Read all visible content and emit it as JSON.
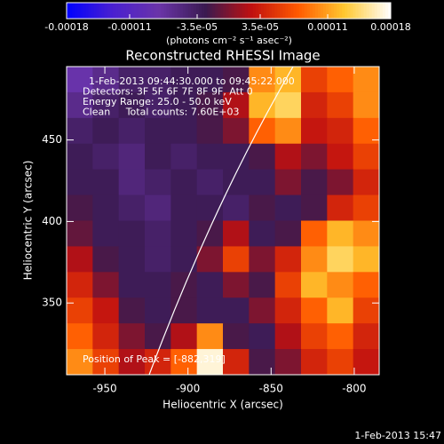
{
  "chart_data": {
    "type": "heatmap",
    "title": "Reconstructed RHESSI Image",
    "colorbar_label": "(photons cm⁻² s⁻¹ asec⁻²)",
    "colorbar_ticks": [
      -0.00018,
      -0.00011,
      {
        "value": -3.5e-05,
        "label": "-3.5e-05"
      },
      {
        "value": 3.5e-05,
        "label": "3.5e-05"
      },
      0.00011,
      0.00018
    ],
    "clim": [
      -0.00018,
      0.00018
    ],
    "colormap": [
      "#0000ff",
      "#4a20d0",
      "#6a34a8",
      "#3a1a50",
      "#c01010",
      "#ff5a00",
      "#ffc830",
      "#ffffff"
    ],
    "x_label": "Heliocentric X (arcsec)",
    "y_label": "Heliocentric Y (arcsec)",
    "xlim": [
      -973,
      -785
    ],
    "ylim": [
      306,
      495
    ],
    "xticks": [
      -950,
      -900,
      -850,
      -800
    ],
    "yticks": [
      350,
      400,
      450
    ],
    "annotations": [
      "1-Feb-2013 09:44:30.000 to 09:45:22.000",
      "Detectors: 3F 5F 6F 7F 8F 9F, Att 0",
      "Energy Range: 25.0 - 50.0 keV",
      "Clean     Total counts: 7.60E+03"
    ],
    "peak_label": "Position of Peak = [-882,319]",
    "footer": "1-Feb-2013 15:47",
    "z": [
      [
        -8e-05,
        -6e-05,
        -4e-05,
        -4e-05,
        -3e-05,
        -3e-05,
        -2e-05,
        0.0001,
        0.00012,
        6e-05,
        8e-05,
        0.0001
      ],
      [
        -6e-05,
        -4e-05,
        -3e-05,
        -4e-05,
        -3e-05,
        -2e-05,
        2e-05,
        0.00012,
        0.00014,
        4e-05,
        6e-05,
        0.0001
      ],
      [
        -4e-05,
        -3e-05,
        -4e-05,
        -3e-05,
        -3e-05,
        -2e-05,
        0,
        8e-05,
        0.0001,
        3e-05,
        4e-05,
        8e-05
      ],
      [
        -3e-05,
        -4e-05,
        -5e-05,
        -3e-05,
        -4e-05,
        -3e-05,
        -3e-05,
        -2e-05,
        2e-05,
        0,
        3e-05,
        6e-05
      ],
      [
        -3e-05,
        -3e-05,
        -5e-05,
        -4e-05,
        -3e-05,
        -4e-05,
        -3e-05,
        -3e-05,
        0,
        -2e-05,
        0,
        4e-05
      ],
      [
        -2e-05,
        -3e-05,
        -4e-05,
        -5e-05,
        -3e-05,
        -3e-05,
        -4e-05,
        -2e-05,
        -3e-05,
        -2e-05,
        4e-05,
        6e-05
      ],
      [
        -1e-05,
        -3e-05,
        -3e-05,
        -4e-05,
        -3e-05,
        -2e-05,
        2e-05,
        -3e-05,
        -2e-05,
        8e-05,
        0.00012,
        0.0001
      ],
      [
        2e-05,
        -2e-05,
        -3e-05,
        -4e-05,
        -3e-05,
        0,
        6e-05,
        0,
        4e-05,
        0.0001,
        0.00014,
        0.00012
      ],
      [
        4e-05,
        0,
        -3e-05,
        -3e-05,
        -2e-05,
        -3e-05,
        0,
        -2e-05,
        6e-05,
        0.00012,
        0.0001,
        8e-05
      ],
      [
        6e-05,
        3e-05,
        -2e-05,
        -3e-05,
        -2e-05,
        -3e-05,
        -3e-05,
        0,
        4e-05,
        8e-05,
        0.00012,
        6e-05
      ],
      [
        8e-05,
        4e-05,
        0,
        -2e-05,
        2e-05,
        0.0001,
        -2e-05,
        -3e-05,
        2e-05,
        6e-05,
        8e-05,
        4e-05
      ],
      [
        0.0001,
        6e-05,
        2e-05,
        4e-05,
        8e-05,
        0.00017,
        4e-05,
        -2e-05,
        0,
        4e-05,
        6e-05,
        3e-05
      ]
    ]
  }
}
